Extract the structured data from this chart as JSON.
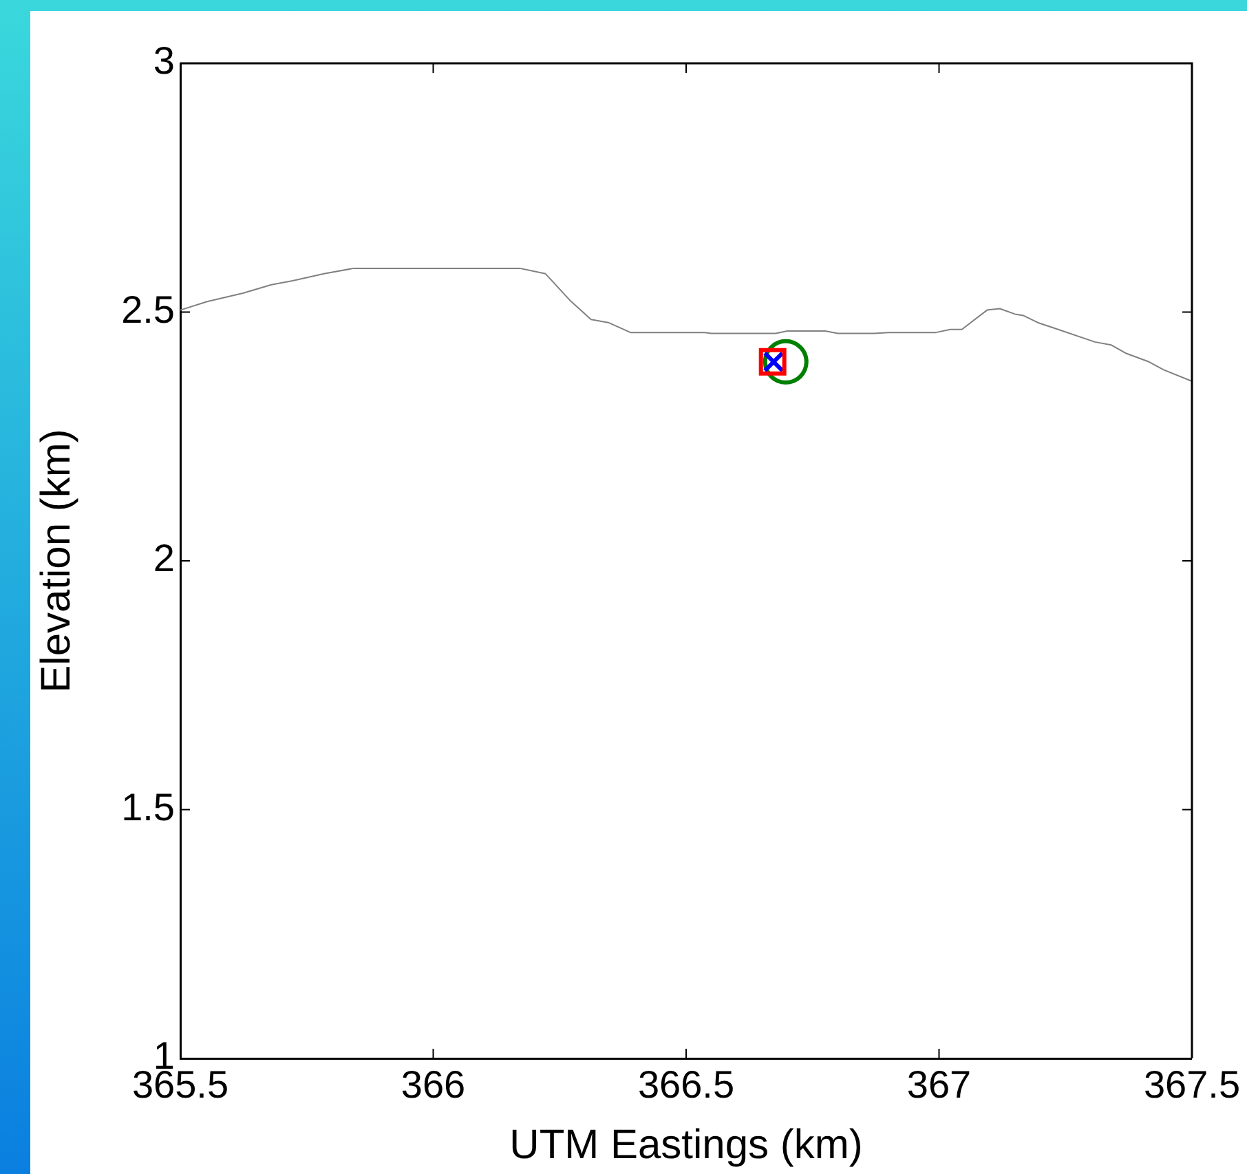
{
  "chart_data": {
    "type": "line",
    "xlabel": "UTM Eastings (km)",
    "ylabel": "Elevation (km)",
    "xlim": [
      365.5,
      367.5
    ],
    "xticks": [
      365.5,
      366,
      366.5,
      367,
      367.5
    ],
    "ylim": [
      1,
      3
    ],
    "yticks": [
      1,
      1.5,
      2,
      2.5,
      3
    ],
    "grid": false,
    "legend": false,
    "series": [
      {
        "type": "line",
        "color": "#808080",
        "marker": "none",
        "x": [
          365.5,
          365.553,
          365.624,
          365.68,
          365.722,
          365.784,
          365.843,
          366.171,
          366.222,
          366.27,
          366.312,
          366.346,
          366.39,
          366.537,
          366.55,
          366.677,
          366.7,
          366.775,
          366.8,
          366.87,
          366.9,
          366.994,
          367.022,
          367.045,
          367.095,
          367.12,
          367.15,
          367.167,
          367.195,
          367.308,
          367.34,
          367.37,
          367.415,
          367.444,
          367.5
        ],
        "values": [
          2.504,
          2.521,
          2.538,
          2.555,
          2.563,
          2.577,
          2.588,
          2.588,
          2.577,
          2.524,
          2.485,
          2.479,
          2.459,
          2.459,
          2.457,
          2.457,
          2.462,
          2.462,
          2.457,
          2.457,
          2.459,
          2.459,
          2.465,
          2.465,
          2.504,
          2.507,
          2.496,
          2.493,
          2.479,
          2.44,
          2.434,
          2.417,
          2.4,
          2.384,
          2.361
        ]
      },
      {
        "type": "scatter",
        "color": "#ff0000",
        "marker": "square",
        "x": [
          366.671
        ],
        "values": [
          2.4
        ]
      },
      {
        "type": "scatter",
        "color": "#0000ff",
        "marker": "cross",
        "x": [
          366.673
        ],
        "values": [
          2.4
        ]
      },
      {
        "type": "scatter",
        "color": "#008000",
        "marker": "circle",
        "x": [
          366.697
        ],
        "values": [
          2.4
        ]
      }
    ]
  }
}
